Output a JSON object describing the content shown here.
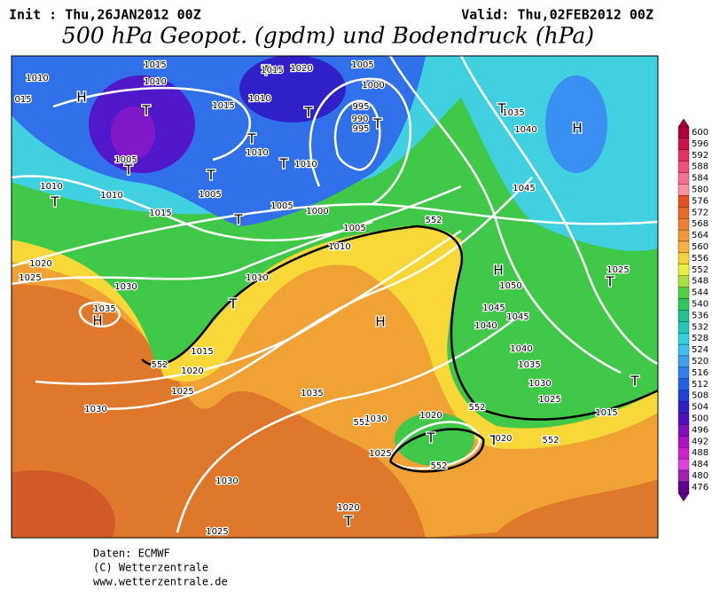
{
  "header": {
    "init": "Init : Thu,26JAN2012 00Z",
    "valid": "Valid: Thu,02FEB2012 00Z",
    "title": "500 hPa Geopot. (gpdm) und Bodendruck (hPa)"
  },
  "footer": [
    "Daten: ECMWF",
    "(C) Wetterzentrale",
    "www.wetterzentrale.de"
  ],
  "colorbar": {
    "labels": [
      600,
      596,
      592,
      588,
      584,
      580,
      576,
      572,
      568,
      564,
      560,
      556,
      552,
      548,
      544,
      540,
      536,
      532,
      528,
      524,
      520,
      516,
      512,
      508,
      504,
      500,
      496,
      492,
      488,
      484,
      480,
      476
    ],
    "colors": [
      "#b0003c",
      "#d0104c",
      "#e83060",
      "#f05078",
      "#f87090",
      "#ff90a0",
      "#e85020",
      "#e86828",
      "#f08030",
      "#f09838",
      "#f8b040",
      "#f8d038",
      "#e8f040",
      "#a8e040",
      "#50d040",
      "#30c858",
      "#20c090",
      "#20c8b8",
      "#30d0e0",
      "#40c0f0",
      "#40a0f0",
      "#3080f0",
      "#2060e8",
      "#2040d8",
      "#3020c8",
      "#5010c0",
      "#8010c0",
      "#b010c8",
      "#d020d0",
      "#e040e0",
      "#a020b0",
      "#600090"
    ]
  },
  "map": {
    "labels": [
      "1010",
      "015",
      "H",
      "1015",
      "1010",
      "T",
      "1015",
      "1010",
      "T",
      "1015",
      "1020",
      "1005",
      "1000",
      "995",
      "990",
      "995",
      "T",
      "T",
      "T",
      "1010",
      "T",
      "1010",
      "1005",
      "T",
      "T",
      "1005",
      "1005",
      "1000",
      "T",
      "1035",
      "T",
      "1040",
      "H",
      "1010",
      "T",
      "1010",
      "1015",
      "1005",
      "1010",
      "552",
      "1045",
      "1020",
      "1025",
      "1030",
      "1010",
      "T",
      "H",
      "1050",
      "1025",
      "T",
      "1035",
      "H",
      "H",
      "1045",
      "1045",
      "1040",
      "552",
      "1015",
      "1020",
      "1040",
      "1035",
      "1030",
      "1025",
      "T",
      "1025",
      "1035",
      "1030",
      "552",
      "1020",
      "1015",
      "552",
      "1030",
      "T",
      "T",
      "020",
      "552",
      "1025",
      "552",
      "1030",
      "1020",
      "T",
      "1025"
    ]
  }
}
